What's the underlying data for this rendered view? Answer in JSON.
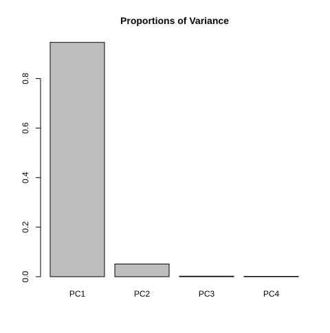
{
  "chart_data": {
    "type": "bar",
    "title": "Proportions of Variance",
    "xlabel": "",
    "ylabel": "",
    "categories": [
      "PC1",
      "PC2",
      "PC3",
      "PC4"
    ],
    "values": [
      0.9461,
      0.0513,
      0.002,
      0.0006
    ],
    "ylim": [
      0,
      0.96
    ],
    "yticks": [
      0.0,
      0.2,
      0.4,
      0.6,
      0.8
    ],
    "ytick_labels": [
      "0.0",
      "0.2",
      "0.4",
      "0.6",
      "0.8"
    ],
    "grid": false,
    "legend": "none",
    "bar_fill": "#bebebe",
    "bar_stroke": "#000000"
  }
}
